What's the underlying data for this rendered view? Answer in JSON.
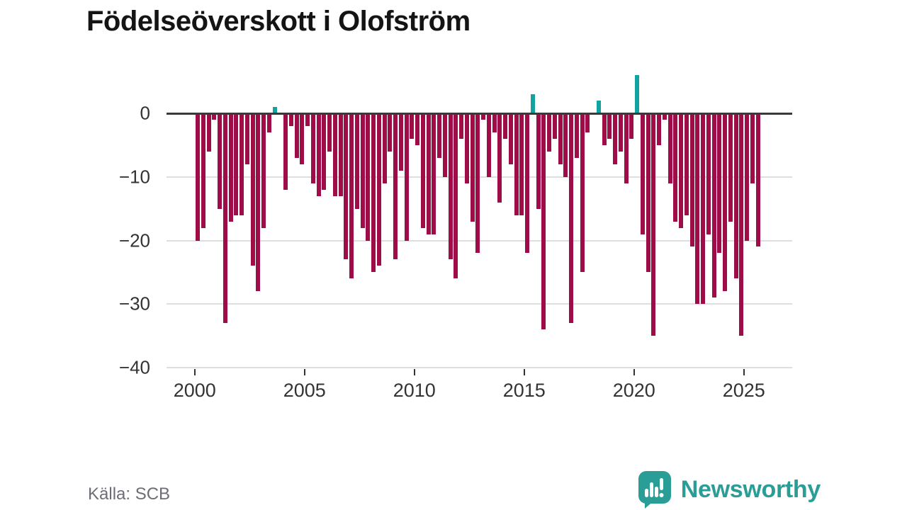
{
  "title": "Födelseöverskott i Olofström",
  "source": "Källa: SCB",
  "logo": {
    "text": "Newsworthy"
  },
  "colors": {
    "negative_bar": "#9e0d48",
    "positive_bar": "#12a3a0",
    "axis": "#3a3a3a",
    "grid": "#dedede",
    "tick_label": "#333333",
    "source_text": "#6d6d76",
    "logo_teal": "#2a9d97",
    "title_text": "#141414",
    "background": "#ffffff"
  },
  "chart_data": {
    "type": "bar",
    "title": "Födelseöverskott i Olofström",
    "xlabel": "",
    "ylabel": "",
    "frequency": "quarterly",
    "start": "2000 Q1",
    "end": "2025 Q3",
    "ylim": [
      -40,
      7
    ],
    "grid": "horizontal",
    "legend": "none",
    "ytick_values": [
      0,
      -10,
      -20,
      -30,
      -40
    ],
    "ytick_labels": [
      "0",
      "−10",
      "−20",
      "−30",
      "−40"
    ],
    "xtick_years": [
      2000,
      2005,
      2010,
      2015,
      2020,
      2025
    ],
    "xtick_labels": [
      "2000",
      "2005",
      "2010",
      "2015",
      "2020",
      "2025"
    ],
    "values": [
      -20,
      -18,
      -6,
      -1,
      -15,
      -33,
      -17,
      -16,
      -16,
      -8,
      -24,
      -28,
      -18,
      -3,
      1,
      0,
      -12,
      -2,
      -7,
      -8,
      -2,
      -11,
      -13,
      -12,
      -6,
      -13,
      -13,
      -23,
      -26,
      -15,
      -18,
      -20,
      -25,
      -24,
      -11,
      -6,
      -23,
      -9,
      -20,
      -4,
      -5,
      -18,
      -19,
      -19,
      -7,
      -10,
      -23,
      -26,
      -4,
      -11,
      -17,
      -22,
      -1,
      -10,
      -3,
      -14,
      -4,
      -8,
      -16,
      -16,
      -22,
      3,
      -15,
      -34,
      -6,
      -4,
      -8,
      -10,
      -33,
      -7,
      -25,
      -3,
      0,
      2,
      -5,
      -4,
      -8,
      -6,
      -11,
      -4,
      6,
      -19,
      -25,
      -35,
      -5,
      -1,
      -11,
      -17,
      -18,
      -16,
      -21,
      -30,
      -30,
      -19,
      -29,
      -22,
      -28,
      -17,
      -26,
      -35,
      -20,
      -11,
      -21
    ]
  }
}
